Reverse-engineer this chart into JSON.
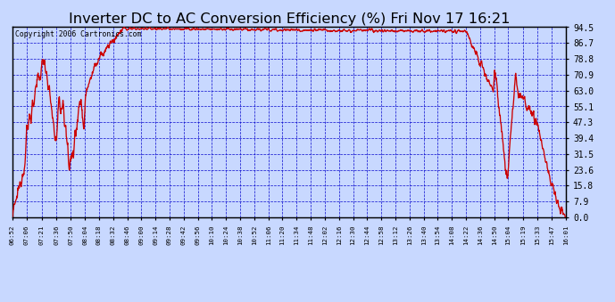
{
  "title": "Inverter DC to AC Conversion Efficiency (%) Fri Nov 17 16:21",
  "copyright_text": "Copyright 2006 Cartronics.com",
  "background_color": "#c8d8ff",
  "plot_bg_color": "#c8d8ff",
  "line_color": "#cc0000",
  "grid_color": "#0000cc",
  "border_color": "#000000",
  "title_color": "#000000",
  "title_fontsize": 11,
  "ymin": 0.0,
  "ymax": 94.5,
  "ytick_vals": [
    0.0,
    7.9,
    15.8,
    23.6,
    31.5,
    39.4,
    47.3,
    55.1,
    63.0,
    70.9,
    78.8,
    86.7,
    94.5
  ],
  "x_tick_labels": [
    "06:52",
    "07:06",
    "07:21",
    "07:36",
    "07:50",
    "08:04",
    "08:18",
    "08:32",
    "08:46",
    "09:00",
    "09:14",
    "09:28",
    "09:42",
    "09:56",
    "10:10",
    "10:24",
    "10:38",
    "10:52",
    "11:06",
    "11:20",
    "11:34",
    "11:48",
    "12:02",
    "12:16",
    "12:30",
    "12:44",
    "12:58",
    "13:12",
    "13:26",
    "13:40",
    "13:54",
    "14:08",
    "14:22",
    "14:36",
    "14:50",
    "15:04",
    "15:19",
    "15:33",
    "15:47",
    "16:01"
  ],
  "start_time": "06:52",
  "end_time": "16:01"
}
